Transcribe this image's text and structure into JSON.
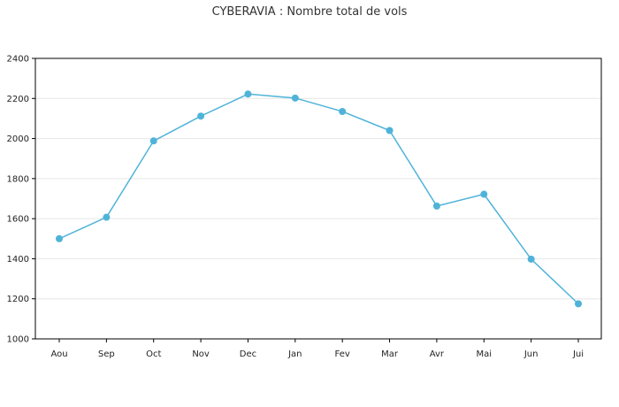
{
  "chart_data": {
    "type": "line",
    "title": "CYBERAVIA : Nombre total de vols",
    "xlabel": "",
    "ylabel": "",
    "categories": [
      "Aou",
      "Sep",
      "Oct",
      "Nov",
      "Dec",
      "Jan",
      "Fev",
      "Mar",
      "Avr",
      "Mai",
      "Jun",
      "Jui"
    ],
    "series": [
      {
        "values": [
          1500,
          1607,
          1988,
          2112,
          2222,
          2202,
          2135,
          2040,
          1663,
          1722,
          1398,
          1175
        ]
      }
    ],
    "ylim": [
      1000,
      2400
    ],
    "yticks": [
      1000,
      1200,
      1400,
      1600,
      1800,
      2000,
      2200,
      2400
    ],
    "grid": true,
    "legend": "none",
    "colors": {
      "line": "#4fb3d9",
      "marker": "#4fb3d9",
      "grid": "#e6e6e6",
      "axis": "#000000"
    }
  }
}
